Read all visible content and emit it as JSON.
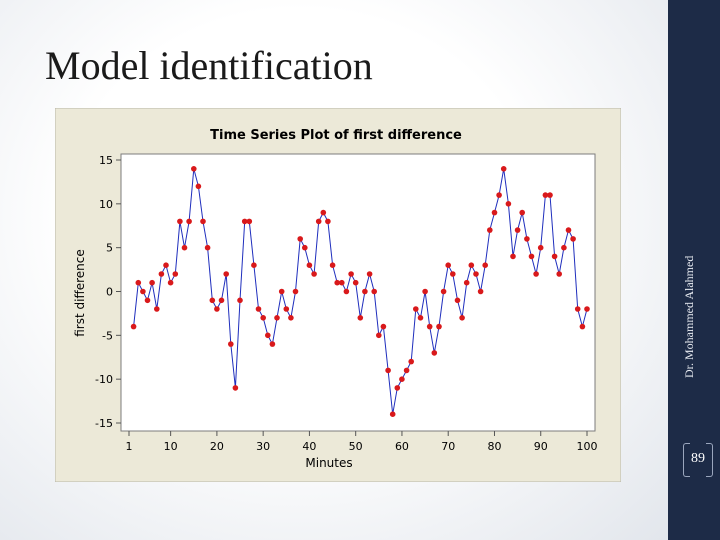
{
  "slide": {
    "title": "Model identification",
    "author": "Dr. Mohammed Alahmed",
    "page_number": "89"
  },
  "colors": {
    "panel_bg": "#ece9d8",
    "plot_bg": "#ffffff",
    "line": "#1f2ebd",
    "marker": "#d9191b",
    "side_bar": "#1d2b47"
  },
  "chart_data": {
    "type": "line",
    "title": "Time Series Plot of first difference",
    "xlabel": "Minutes",
    "ylabel": "first difference",
    "xlim": [
      1,
      100
    ],
    "ylim": [
      -15,
      15
    ],
    "x_ticks": [
      1,
      10,
      20,
      30,
      40,
      50,
      60,
      70,
      80,
      90,
      100
    ],
    "y_ticks": [
      -15,
      -10,
      -5,
      0,
      5,
      10,
      15
    ],
    "y_tick_labels": [
      "-15",
      "-10",
      "-5",
      "0",
      "5",
      "10",
      "15"
    ],
    "grid": false,
    "legend": "none",
    "series": [
      {
        "x": [
          2,
          3,
          4,
          5,
          6,
          7,
          8,
          9,
          10,
          11,
          12,
          13,
          14,
          15,
          16,
          17,
          18,
          19,
          20,
          21,
          22,
          23,
          24,
          25,
          26,
          27,
          28,
          29,
          30,
          31,
          32,
          33,
          34,
          35,
          36,
          37,
          38,
          39,
          40,
          41,
          42,
          43,
          44,
          45,
          46,
          47,
          48,
          49,
          50,
          51,
          52,
          53,
          54,
          55,
          56,
          57,
          58,
          59,
          60,
          61,
          62,
          63,
          64,
          65,
          66,
          67,
          68,
          69,
          70,
          71,
          72,
          73,
          74,
          75,
          76,
          77,
          78,
          79,
          80,
          81,
          82,
          83,
          84,
          85,
          86,
          87,
          88,
          89,
          90,
          91,
          92,
          93,
          94,
          95,
          96,
          97,
          98,
          99,
          100
        ],
        "values": [
          -4,
          1,
          0,
          -1,
          1,
          -2,
          2,
          3,
          1,
          2,
          8,
          5,
          8,
          14,
          12,
          8,
          5,
          -1,
          -2,
          -1,
          2,
          -6,
          -11,
          -1,
          8,
          8,
          3,
          -2,
          -3,
          -5,
          -6,
          -3,
          0,
          -2,
          -3,
          0,
          6,
          5,
          3,
          2,
          8,
          9,
          8,
          3,
          1,
          1,
          0,
          2,
          1,
          -3,
          0,
          2,
          0,
          -5,
          -4,
          -9,
          -14,
          -11,
          -10,
          -9,
          -8,
          -2,
          -3,
          0,
          -4,
          -7,
          -4,
          0,
          3,
          2,
          -1,
          -3,
          1,
          3,
          2,
          0,
          3,
          7,
          9,
          11,
          14,
          10,
          4,
          7,
          9,
          6,
          4,
          2,
          5,
          11,
          11,
          4,
          2,
          5,
          7,
          6,
          -2,
          -4,
          -2
        ]
      }
    ]
  }
}
